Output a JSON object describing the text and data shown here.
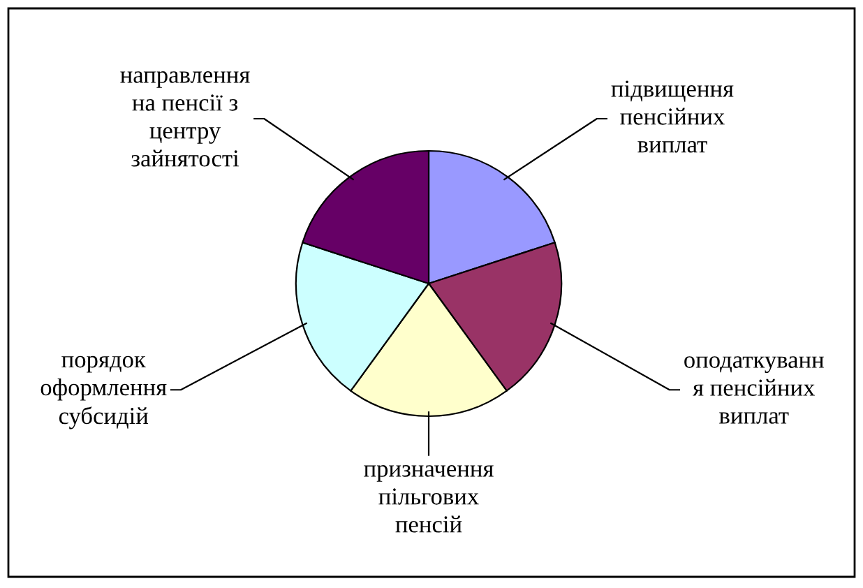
{
  "chart_data": {
    "type": "pie",
    "categories": [
      "підвищення\nпенсійних\nвиплат",
      "оподаткуванн\nя пенсійних\nвиплат",
      "призначення\nпільгових\nпенсій",
      "порядок\nоформлення\nсубсидій",
      "направлення\nна пенсії з\nцентру\nзайнятості"
    ],
    "values": [
      20,
      20,
      20,
      20,
      20
    ],
    "colors": [
      "#9999ff",
      "#993366",
      "#ffffcc",
      "#ccffff",
      "#660066"
    ]
  }
}
